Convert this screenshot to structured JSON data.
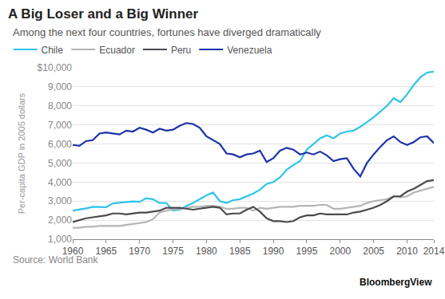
{
  "chart_data": {
    "type": "line",
    "title": "A Big Loser and a Big Winner",
    "subtitle": "Among the next four countries, fortunes have diverged dramatically",
    "y_label": "Per-capita GDP in 2005 dollars",
    "source": "Source: World Bank",
    "credit": "BloombergView",
    "x": [
      1960,
      1961,
      1962,
      1963,
      1964,
      1965,
      1966,
      1967,
      1968,
      1969,
      1970,
      1971,
      1972,
      1973,
      1974,
      1975,
      1976,
      1977,
      1978,
      1979,
      1980,
      1981,
      1982,
      1983,
      1984,
      1985,
      1986,
      1987,
      1988,
      1989,
      1990,
      1991,
      1992,
      1993,
      1994,
      1995,
      1996,
      1997,
      1998,
      1999,
      2000,
      2001,
      2002,
      2003,
      2004,
      2005,
      2006,
      2007,
      2008,
      2009,
      2010,
      2011,
      2012,
      2013,
      2014
    ],
    "series": [
      {
        "name": "Chile",
        "color": "#2ec4ea",
        "values": [
          2500,
          2550,
          2620,
          2700,
          2700,
          2680,
          2880,
          2900,
          2950,
          2980,
          2960,
          3150,
          3100,
          2900,
          2900,
          2500,
          2550,
          2750,
          2900,
          3100,
          3300,
          3450,
          3000,
          2900,
          3050,
          3100,
          3250,
          3400,
          3600,
          3900,
          4000,
          4250,
          4650,
          4900,
          5100,
          5700,
          6000,
          6300,
          6450,
          6300,
          6550,
          6650,
          6700,
          6900,
          7150,
          7400,
          7700,
          8000,
          8400,
          8200,
          8600,
          9100,
          9500,
          9750,
          9800
        ]
      },
      {
        "name": "Ecuador",
        "color": "#b5b5b5",
        "values": [
          1600,
          1600,
          1650,
          1650,
          1700,
          1700,
          1700,
          1700,
          1750,
          1800,
          1850,
          1900,
          2050,
          2400,
          2500,
          2550,
          2600,
          2650,
          2700,
          2700,
          2750,
          2750,
          2700,
          2600,
          2600,
          2650,
          2650,
          2500,
          2650,
          2600,
          2650,
          2700,
          2700,
          2700,
          2750,
          2750,
          2750,
          2800,
          2800,
          2600,
          2600,
          2650,
          2700,
          2750,
          2900,
          3000,
          3050,
          3100,
          3250,
          3200,
          3250,
          3450,
          3550,
          3650,
          3750
        ]
      },
      {
        "name": "Peru",
        "color": "#4a4a4f",
        "values": [
          1900,
          2000,
          2100,
          2150,
          2200,
          2250,
          2350,
          2350,
          2300,
          2350,
          2400,
          2400,
          2450,
          2500,
          2650,
          2650,
          2650,
          2600,
          2550,
          2600,
          2650,
          2700,
          2650,
          2300,
          2350,
          2350,
          2550,
          2700,
          2450,
          2100,
          1950,
          1950,
          1900,
          1950,
          2150,
          2250,
          2250,
          2350,
          2300,
          2300,
          2300,
          2300,
          2400,
          2450,
          2550,
          2650,
          2800,
          3000,
          3250,
          3250,
          3500,
          3650,
          3850,
          4050,
          4100
        ]
      },
      {
        "name": "Venezuela",
        "color": "#1c33a8",
        "values": [
          5950,
          5900,
          6150,
          6200,
          6550,
          6600,
          6550,
          6500,
          6700,
          6650,
          6850,
          6750,
          6600,
          6800,
          6700,
          6750,
          6950,
          7100,
          7050,
          6850,
          6400,
          6200,
          6000,
          5500,
          5450,
          5300,
          5450,
          5500,
          5650,
          5050,
          5250,
          5650,
          5800,
          5700,
          5450,
          5550,
          5450,
          5600,
          5400,
          5100,
          5200,
          5250,
          4700,
          4300,
          5000,
          5450,
          5850,
          6200,
          6400,
          6100,
          5950,
          6100,
          6350,
          6400,
          6050
        ]
      }
    ],
    "xlim": [
      1960,
      2014
    ],
    "xticks": [
      1960,
      1965,
      1970,
      1975,
      1980,
      1985,
      1990,
      1995,
      2000,
      2005,
      2010,
      2014
    ],
    "ylim": [
      1000,
      10000
    ],
    "yticks": [
      {
        "value": 1000,
        "label": "1,000"
      },
      {
        "value": 2000,
        "label": "2,000"
      },
      {
        "value": 3000,
        "label": "3,000"
      },
      {
        "value": 4000,
        "label": "4,000"
      },
      {
        "value": 5000,
        "label": "5,000"
      },
      {
        "value": 6000,
        "label": "6,000"
      },
      {
        "value": 7000,
        "label": "7,000"
      },
      {
        "value": 8000,
        "label": "8,000"
      },
      {
        "value": 9000,
        "label": "9,000"
      },
      {
        "value": 10000,
        "label": "$10,000"
      }
    ],
    "grid": true,
    "legend": "top left",
    "line_style": "solid"
  }
}
